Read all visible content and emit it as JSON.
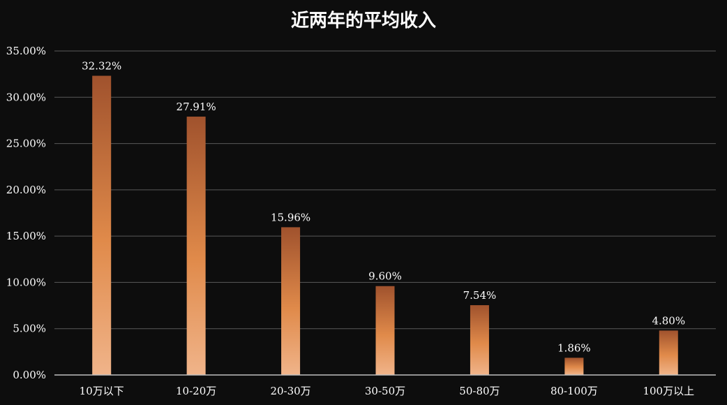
{
  "chart_data": {
    "type": "bar",
    "title": "近两年的平均收入",
    "xlabel": "",
    "ylabel": "",
    "categories": [
      "10万以下",
      "10-20万",
      "20-30万",
      "30-50万",
      "50-80万",
      "80-100万",
      "100万以上"
    ],
    "values": [
      32.32,
      27.91,
      15.96,
      9.6,
      7.54,
      1.86,
      4.8
    ],
    "value_labels": [
      "32.32%",
      "27.91%",
      "15.96%",
      "9.60%",
      "7.54%",
      "1.86%",
      "4.80%"
    ],
    "ylim": [
      0,
      35
    ],
    "yticks": [
      0,
      5,
      10,
      15,
      20,
      25,
      30,
      35
    ],
    "ytick_labels": [
      "0.00%",
      "5.00%",
      "10.00%",
      "15.00%",
      "20.00%",
      "25.00%",
      "30.00%",
      "35.00%"
    ],
    "grid": true,
    "legend": "none",
    "colors": {
      "background": "#0d0d0d",
      "bar_top": "#a0522d",
      "bar_mid": "#e08a4a",
      "bar_bottom": "#f0b48a",
      "grid": "#5a5a5a",
      "text": "#ffffff"
    }
  }
}
